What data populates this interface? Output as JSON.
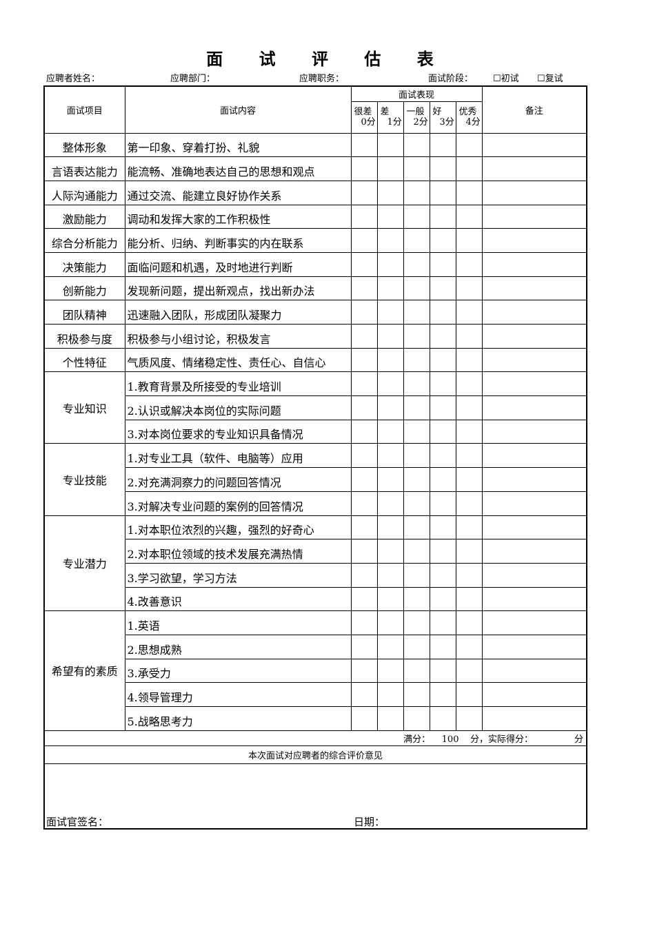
{
  "title": "面 试 评 估 表",
  "info": {
    "name": "应聘者姓名：",
    "dept": "应聘部门：",
    "position": "应聘职务：",
    "stage": "面试阶段：",
    "first": "☐初试",
    "second": "☐复试"
  },
  "header": {
    "item": "面试项目",
    "content": "面试内容",
    "performance": "面试表现",
    "notes": "备注",
    "levels": [
      {
        "label": "很差",
        "score": "0分"
      },
      {
        "label": "差",
        "score": "1分"
      },
      {
        "label": "一般",
        "score": "2分"
      },
      {
        "label": "好",
        "score": "3分"
      },
      {
        "label": "优秀",
        "score": "4分"
      }
    ]
  },
  "groups": [
    {
      "item": "整体形象",
      "contents": [
        "第一印象、穿着打扮、礼貌"
      ]
    },
    {
      "item": "言语表达能力",
      "contents": [
        "能流畅、准确地表达自己的思想和观点"
      ]
    },
    {
      "item": "人际沟通能力",
      "contents": [
        "通过交流、能建立良好协作关系"
      ]
    },
    {
      "item": "激励能力",
      "contents": [
        "调动和发挥大家的工作积极性"
      ]
    },
    {
      "item": "综合分析能力",
      "contents": [
        "能分析、归纳、判断事实的内在联系"
      ]
    },
    {
      "item": "决策能力",
      "contents": [
        "面临问题和机遇，及时地进行判断"
      ]
    },
    {
      "item": "创新能力",
      "contents": [
        "发现新问题，提出新观点，找出新办法"
      ]
    },
    {
      "item": "团队精神",
      "contents": [
        "迅速融入团队，形成团队凝聚力"
      ]
    },
    {
      "item": "积极参与度",
      "contents": [
        "积极参与小组讨论，积极发言"
      ]
    },
    {
      "item": "个性特征",
      "contents": [
        "气质风度、情绪稳定性、责任心、自信心"
      ]
    },
    {
      "item": "专业知识",
      "contents": [
        "1.教育背景及所接受的专业培训",
        "2.认识或解决本岗位的实际问题",
        "3.对本岗位要求的专业知识具备情况"
      ]
    },
    {
      "item": "专业技能",
      "contents": [
        "1.对专业工具（软件、电脑等）应用",
        "2.对充满洞察力的问题回答情况",
        "3.对解决专业问题的案例的回答情况"
      ]
    },
    {
      "item": "专业潜力",
      "contents": [
        "1.对本职位浓烈的兴趣，强烈的好奇心",
        "2.对本职位领域的技术发展充满热情",
        "3.学习欲望，学习方法",
        "4.改善意识"
      ]
    },
    {
      "item": "希望有的素质",
      "contents": [
        "1.英语",
        "2.思想成熟",
        "3.承受力",
        "4.领导管理力",
        "5.战略思考力"
      ]
    }
  ],
  "score": {
    "full_label": "满分：",
    "full_value": "100",
    "unit": "分，实际得分：",
    "unit2": "分"
  },
  "comment_header": "本次面试对应聘者的综合评价意见",
  "signature": "面试官签名：",
  "date": "日期："
}
